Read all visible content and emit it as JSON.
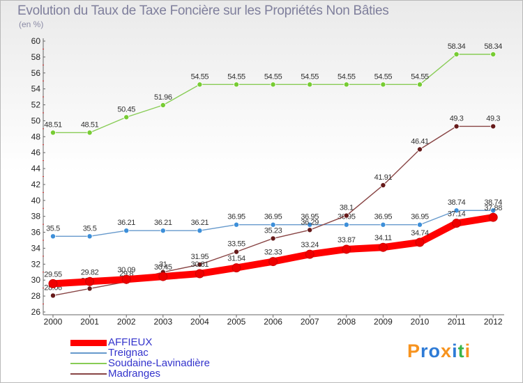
{
  "title": "Evolution du Taux de Taxe Foncière sur les Propriétés Non Bâties",
  "unit": "(en %)",
  "logo": {
    "text": "Proxiti",
    "colors": [
      "#f7931e",
      "#2e7bd6",
      "#2e7bd6",
      "#f7931e",
      "#2e7bd6",
      "#39b54a",
      "#f7931e"
    ]
  },
  "chart_data": {
    "type": "line",
    "x": [
      "2000",
      "2001",
      "2002",
      "2003",
      "2004",
      "2005",
      "2006",
      "2007",
      "2008",
      "2009",
      "2010",
      "2011",
      "2012"
    ],
    "ylim": [
      26,
      60
    ],
    "yticks": [
      26,
      28,
      30,
      32,
      34,
      36,
      38,
      40,
      42,
      44,
      46,
      48,
      50,
      52,
      54,
      56,
      58,
      60
    ],
    "grid": false,
    "legend": "bottom-left",
    "series": [
      {
        "name": "Soudaine-Lavinadière",
        "color": "#88cc55",
        "point_color": "#77cc33",
        "values": [
          48.51,
          48.51,
          50.45,
          51.96,
          54.55,
          54.55,
          54.55,
          54.55,
          54.55,
          54.55,
          54.55,
          58.34,
          58.34
        ],
        "labels": [
          "48.51",
          "48.51",
          "50.45",
          "51.96",
          "54.55",
          "54.55",
          "54.55",
          "54.55",
          "54.55",
          "54.55",
          "54.55",
          "58.34",
          "58.34"
        ]
      },
      {
        "name": "Treignac",
        "color": "#6699cc",
        "point_color": "#3d8fd9",
        "values": [
          35.5,
          35.5,
          36.21,
          36.21,
          36.21,
          36.95,
          36.95,
          36.95,
          36.95,
          36.95,
          36.95,
          38.74,
          38.74
        ],
        "labels": [
          "35.5",
          "35.5",
          "36.21",
          "36.21",
          "36.21",
          "36.95",
          "36.95",
          "36.95",
          "36.95",
          "36.95",
          "36.95",
          "38.74",
          "38.74"
        ]
      },
      {
        "name": "Madranges",
        "color": "#884444",
        "point_color": "#661a1a",
        "values": [
          28.06,
          28.93,
          29.8,
          31,
          31.95,
          33.55,
          35.23,
          36.29,
          38.1,
          41.91,
          46.41,
          49.3,
          49.3
        ],
        "labels": [
          "28.06",
          "28.93",
          "29.8",
          "31",
          "31.95",
          "33.55",
          "35.23",
          "36.29",
          "38.1",
          "41.91",
          "46.41",
          "49.3",
          "49.3"
        ]
      },
      {
        "name": "AFFIEUX",
        "color": "#ff0000",
        "point_color": "#ee0000",
        "values": [
          29.55,
          29.82,
          30.09,
          30.45,
          30.81,
          31.54,
          32.33,
          33.24,
          33.87,
          34.11,
          34.74,
          37.14,
          37.88
        ],
        "labels": [
          "29.55",
          "29.82",
          "30.09",
          "30.45",
          "30.81",
          "31.54",
          "32.33",
          "33.24",
          "33.87",
          "34.11",
          "34.74",
          "37.14",
          "37.88"
        ]
      }
    ]
  },
  "legend_items": [
    {
      "name": "AFFIEUX",
      "color": "#ff0000"
    },
    {
      "name": "Treignac",
      "color": "#6699cc"
    },
    {
      "name": "Soudaine-Lavinadière",
      "color": "#88cc55"
    },
    {
      "name": "Madranges",
      "color": "#884444"
    }
  ]
}
